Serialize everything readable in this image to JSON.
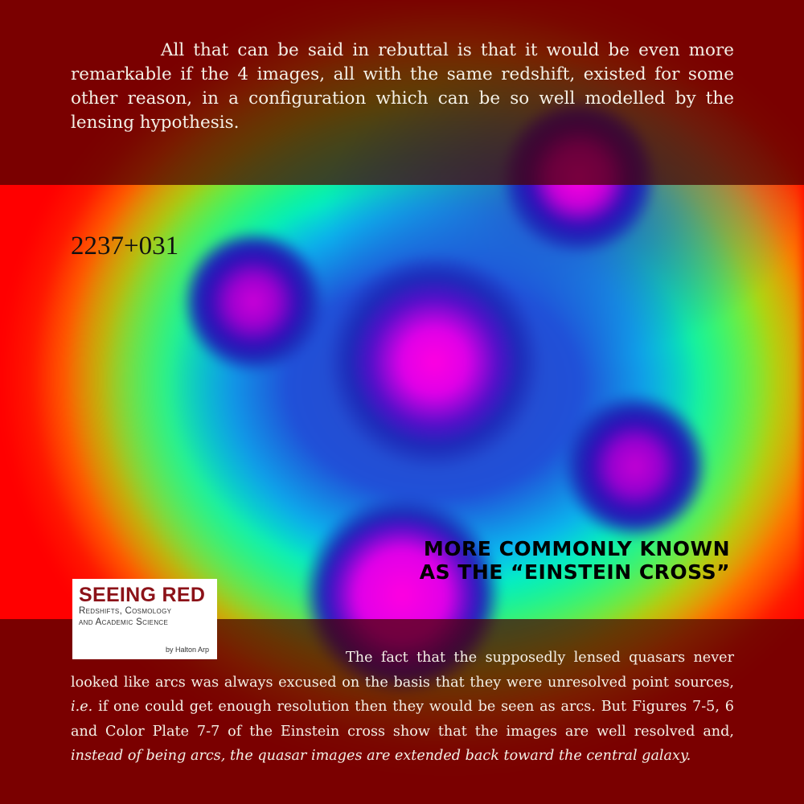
{
  "header_paragraph": "All that can be said in rebuttal is that it would be even more remarkable if the 4 images, all with the same redshift, existed for some other reason, in a configuration which can be so well modelled by the lensing hypothesis.",
  "object_label": "2237+031",
  "callout": {
    "line1": "More commonly known",
    "line2": "as the “Einstein Cross”"
  },
  "book": {
    "title": "SEEING RED",
    "subtitle_line1": "Redshifts, Cosmology",
    "subtitle_line2": "and Academic Science",
    "author": "by Halton Arp"
  },
  "footer_paragraph": {
    "part1": "The fact that the supposedly lensed quasars never looked like arcs was always excused on the basis that they were unresolved point sources, ",
    "ie": "i.e.",
    "part2": " if one could get enough resolution then they would be seen as arcs. But Figures 7-5, 6 and Color Plate 7-7 of the Einstein cross show that the images are well resolved and, ",
    "emphasis": "instead of being arcs, the quasar images are extended back toward the central galaxy."
  },
  "colors": {
    "band": "#460000",
    "book_title": "#8c1218",
    "text": "#f4f0e6"
  }
}
